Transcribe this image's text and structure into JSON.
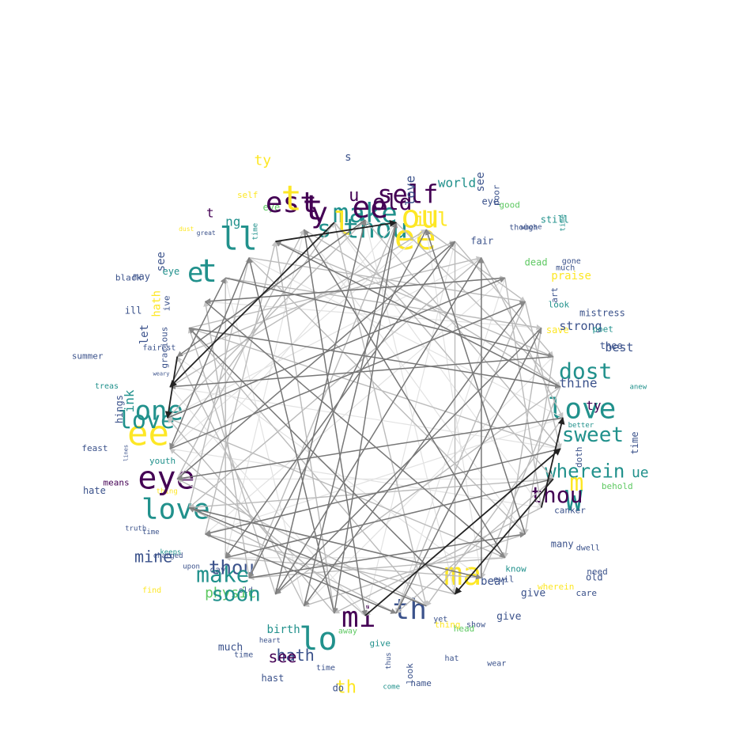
{
  "colors": {
    "edge_strong": "#222222",
    "edge_mid": "#777777",
    "edge_light": "#bbbbbb",
    "edge_faint": "#e2e2e2",
    "viridis": [
      "#440154",
      "#3b528b",
      "#21918c",
      "#5ec962",
      "#fde725"
    ]
  },
  "words": [
    {
      "text": "make",
      "color": 2,
      "size": 34
    },
    {
      "text": "ee",
      "color": 0,
      "size": 38
    },
    {
      "text": "thou",
      "color": 2,
      "size": 34
    },
    {
      "text": "old",
      "color": 0,
      "size": 28
    },
    {
      "text": "self",
      "color": 0,
      "size": 32
    },
    {
      "text": "love",
      "color": 1,
      "size": 16
    },
    {
      "text": "ou",
      "color": 4,
      "size": 40
    },
    {
      "text": "ee",
      "color": 4,
      "size": 44
    },
    {
      "text": "ill",
      "color": 4,
      "size": 24
    },
    {
      "text": "world",
      "color": 2,
      "size": 16
    },
    {
      "text": "see",
      "color": 1,
      "size": 14
    },
    {
      "text": "eye",
      "color": 1,
      "size": 12
    },
    {
      "text": "poor",
      "color": 1,
      "size": 11
    },
    {
      "text": "good",
      "color": 3,
      "size": 11
    },
    {
      "text": "fair",
      "color": 1,
      "size": 12
    },
    {
      "text": "though",
      "color": 1,
      "size": 10
    },
    {
      "text": "whose",
      "color": 1,
      "size": 9
    },
    {
      "text": "still",
      "color": 2,
      "size": 12
    },
    {
      "text": "time",
      "color": 2,
      "size": 9
    },
    {
      "text": "dead",
      "color": 3,
      "size": 12
    },
    {
      "text": "gone",
      "color": 1,
      "size": 10
    },
    {
      "text": "much",
      "color": 1,
      "size": 10
    },
    {
      "text": "praise",
      "color": 4,
      "size": 14
    },
    {
      "text": "art",
      "color": 1,
      "size": 11
    },
    {
      "text": "look",
      "color": 2,
      "size": 11
    },
    {
      "text": "save",
      "color": 4,
      "size": 12
    },
    {
      "text": "strong",
      "color": 1,
      "size": 15
    },
    {
      "text": "mistress",
      "color": 1,
      "size": 12
    },
    {
      "text": "poet",
      "color": 2,
      "size": 11
    },
    {
      "text": "best",
      "color": 1,
      "size": 15
    },
    {
      "text": "thee",
      "color": 1,
      "size": 12
    },
    {
      "text": "dost",
      "color": 2,
      "size": 28
    },
    {
      "text": "thine",
      "color": 1,
      "size": 16
    },
    {
      "text": "anew",
      "color": 2,
      "size": 9
    },
    {
      "text": "love",
      "color": 2,
      "size": 36
    },
    {
      "text": "ty",
      "color": 0,
      "size": 16
    },
    {
      "text": "better",
      "color": 2,
      "size": 9
    },
    {
      "text": "time",
      "color": 1,
      "size": 12
    },
    {
      "text": "sweet",
      "color": 2,
      "size": 26
    },
    {
      "text": "doth",
      "color": 1,
      "size": 11
    },
    {
      "text": "ue",
      "color": 2,
      "size": 18
    },
    {
      "text": "wherein",
      "color": 2,
      "size": 24
    },
    {
      "text": "behold",
      "color": 3,
      "size": 11
    },
    {
      "text": "m",
      "color": 4,
      "size": 30
    },
    {
      "text": "W",
      "color": 2,
      "size": 36
    },
    {
      "text": "thou",
      "color": 0,
      "size": 28
    },
    {
      "text": "canker",
      "color": 1,
      "size": 11
    },
    {
      "text": "dwell",
      "color": 1,
      "size": 10
    },
    {
      "text": "many",
      "color": 1,
      "size": 12
    },
    {
      "text": "need",
      "color": 1,
      "size": 11
    },
    {
      "text": "old",
      "color": 1,
      "size": 12
    },
    {
      "text": "care",
      "color": 1,
      "size": 11
    },
    {
      "text": "wherein",
      "color": 4,
      "size": 11
    },
    {
      "text": "give",
      "color": 1,
      "size": 13
    },
    {
      "text": "know",
      "color": 2,
      "size": 11
    },
    {
      "text": "evil",
      "color": 1,
      "size": 11
    },
    {
      "text": "bear",
      "color": 1,
      "size": 14
    },
    {
      "text": "give",
      "color": 1,
      "size": 13
    },
    {
      "text": "ma",
      "color": 4,
      "size": 40
    },
    {
      "text": "show",
      "color": 1,
      "size": 10
    },
    {
      "text": "wear",
      "color": 1,
      "size": 10
    },
    {
      "text": "head",
      "color": 3,
      "size": 11
    },
    {
      "text": "thing",
      "color": 4,
      "size": 11
    },
    {
      "text": "yet",
      "color": 1,
      "size": 10
    },
    {
      "text": "hat",
      "color": 1,
      "size": 10
    },
    {
      "text": "th",
      "color": 1,
      "size": 36
    },
    {
      "text": "name",
      "color": 1,
      "size": 11
    },
    {
      "text": "look",
      "color": 1,
      "size": 11
    },
    {
      "text": "thus",
      "color": 1,
      "size": 9
    },
    {
      "text": "come",
      "color": 2,
      "size": 9
    },
    {
      "text": "give",
      "color": 2,
      "size": 11
    },
    {
      "text": "mi",
      "color": 0,
      "size": 36
    },
    {
      "text": "th",
      "color": 4,
      "size": 22
    },
    {
      "text": "away",
      "color": 3,
      "size": 10
    },
    {
      "text": "do",
      "color": 1,
      "size": 12
    },
    {
      "text": "time",
      "color": 1,
      "size": 10
    },
    {
      "text": "lo",
      "color": 2,
      "size": 40
    },
    {
      "text": "hath",
      "color": 1,
      "size": 20
    },
    {
      "text": "hast",
      "color": 1,
      "size": 12
    },
    {
      "text": "see",
      "color": 0,
      "size": 20
    },
    {
      "text": "birth",
      "color": 2,
      "size": 14
    },
    {
      "text": "heart",
      "color": 1,
      "size": 9
    },
    {
      "text": "time",
      "color": 1,
      "size": 10
    },
    {
      "text": "much",
      "color": 1,
      "size": 13
    },
    {
      "text": "old",
      "color": 1,
      "size": 10
    },
    {
      "text": "physic",
      "color": 3,
      "size": 18
    },
    {
      "text": "soon",
      "color": 2,
      "size": 26
    },
    {
      "text": "thou",
      "color": 1,
      "size": 24
    },
    {
      "text": "make",
      "color": 2,
      "size": 28
    },
    {
      "text": "day",
      "color": 1,
      "size": 11
    },
    {
      "text": "upon",
      "color": 1,
      "size": 9
    },
    {
      "text": "find",
      "color": 4,
      "size": 10
    },
    {
      "text": "keeps",
      "color": 2,
      "size": 9
    },
    {
      "text": "charged",
      "color": 1,
      "size": 9
    },
    {
      "text": "mine",
      "color": 1,
      "size": 20
    },
    {
      "text": "time",
      "color": 1,
      "size": 9
    },
    {
      "text": "love",
      "color": 2,
      "size": 36
    },
    {
      "text": "truth",
      "color": 1,
      "size": 9
    },
    {
      "text": "thing",
      "color": 4,
      "size": 9
    },
    {
      "text": "eye",
      "color": 0,
      "size": 40
    },
    {
      "text": "means",
      "color": 0,
      "size": 11
    },
    {
      "text": "hate",
      "color": 1,
      "size": 12
    },
    {
      "text": "youth",
      "color": 2,
      "size": 11
    },
    {
      "text": "lines",
      "color": 1,
      "size": 7
    },
    {
      "text": "feast",
      "color": 1,
      "size": 11
    },
    {
      "text": "ee",
      "color": 4,
      "size": 44
    },
    {
      "text": "love",
      "color": 2,
      "size": 30
    },
    {
      "text": "hings",
      "color": 1,
      "size": 12
    },
    {
      "text": "one",
      "color": 2,
      "size": 34
    },
    {
      "text": "ink",
      "color": 2,
      "size": 16
    },
    {
      "text": "treas",
      "color": 2,
      "size": 10
    },
    {
      "text": "weary",
      "color": 1,
      "size": 7
    },
    {
      "text": "summer",
      "color": 1,
      "size": 11
    },
    {
      "text": "fairest",
      "color": 1,
      "size": 10
    },
    {
      "text": "gracious",
      "color": 1,
      "size": 11
    },
    {
      "text": "let",
      "color": 1,
      "size": 14
    },
    {
      "text": "ill",
      "color": 1,
      "size": 12
    },
    {
      "text": "hath",
      "color": 4,
      "size": 14
    },
    {
      "text": "ive",
      "color": 1,
      "size": 11
    },
    {
      "text": "black",
      "color": 1,
      "size": 11
    },
    {
      "text": "may",
      "color": 1,
      "size": 12
    },
    {
      "text": "eye",
      "color": 2,
      "size": 12
    },
    {
      "text": "see",
      "color": 1,
      "size": 14
    },
    {
      "text": "e",
      "color": 2,
      "size": 34
    },
    {
      "text": "t",
      "color": 2,
      "size": 40
    },
    {
      "text": "dust",
      "color": 4,
      "size": 8
    },
    {
      "text": "great",
      "color": 1,
      "size": 8
    },
    {
      "text": "t",
      "color": 0,
      "size": 16
    },
    {
      "text": "ll",
      "color": 2,
      "size": 40
    },
    {
      "text": "ng",
      "color": 2,
      "size": 16
    },
    {
      "text": "time",
      "color": 2,
      "size": 9
    },
    {
      "text": "self",
      "color": 4,
      "size": 11
    },
    {
      "text": "eye",
      "color": 3,
      "size": 12
    },
    {
      "text": "ty",
      "color": 4,
      "size": 18
    },
    {
      "text": "est",
      "color": 0,
      "size": 36
    },
    {
      "text": "t",
      "color": 4,
      "size": 44
    },
    {
      "text": "t",
      "color": 0,
      "size": 44
    },
    {
      "text": "y",
      "color": 0,
      "size": 36
    },
    {
      "text": "s",
      "color": 2,
      "size": 30
    },
    {
      "text": "l",
      "color": 4,
      "size": 40
    },
    {
      "text": "u",
      "color": 0,
      "size": 22
    },
    {
      "text": "s",
      "color": 1,
      "size": 14
    }
  ],
  "edges": [
    {
      "from": 13,
      "to": 10,
      "w": 3,
      "dir": 1
    },
    {
      "from": 12,
      "to": 17,
      "w": 3,
      "dir": 1
    },
    {
      "from": 20,
      "to": 11,
      "w": 3,
      "dir": 1
    },
    {
      "from": 37,
      "to": 1,
      "w": 3,
      "dir": 1
    },
    {
      "from": 39,
      "to": 31,
      "w": 3,
      "dir": 1
    },
    {
      "from": 32,
      "to": 30,
      "w": 3,
      "dir": 1
    },
    {
      "from": 38,
      "to": 20,
      "w": 2,
      "dir": 1
    },
    {
      "from": 5,
      "to": 34,
      "w": 2,
      "dir": 1
    },
    {
      "from": 6,
      "to": 22,
      "w": 2,
      "dir": 1
    },
    {
      "from": 33,
      "to": 9,
      "w": 2,
      "dir": 1
    },
    {
      "from": 8,
      "to": 31,
      "w": 2,
      "dir": 1
    },
    {
      "from": 7,
      "to": 23,
      "w": 2,
      "dir": 1
    },
    {
      "from": 4,
      "to": 23,
      "w": 2,
      "dir": 1
    },
    {
      "from": 24,
      "to": 14,
      "w": 2,
      "dir": 1
    },
    {
      "from": 26,
      "to": 19,
      "w": 2,
      "dir": 1
    },
    {
      "from": 25,
      "to": 12,
      "w": 2,
      "dir": 1
    },
    {
      "from": 30,
      "to": 5,
      "w": 2,
      "dir": 1
    },
    {
      "from": 29,
      "to": 6,
      "w": 2,
      "dir": 1
    },
    {
      "from": 35,
      "to": 8,
      "w": 2,
      "dir": 1
    },
    {
      "from": 16,
      "to": 4,
      "w": 2,
      "dir": 1
    },
    {
      "from": 18,
      "to": 27,
      "w": 2,
      "dir": 1
    },
    {
      "from": 21,
      "to": 36,
      "w": 2,
      "dir": 1
    },
    {
      "from": 28,
      "to": 3,
      "w": 2,
      "dir": 1
    },
    {
      "from": 15,
      "to": 38,
      "w": 2,
      "dir": 1
    },
    {
      "from": 11,
      "to": 26,
      "w": 2,
      "dir": 1
    },
    {
      "from": 14,
      "to": 2,
      "w": 2,
      "dir": 1
    },
    {
      "from": 22,
      "to": 1,
      "w": 2,
      "dir": 1
    },
    {
      "from": 23,
      "to": 0,
      "w": 2,
      "dir": 1
    },
    {
      "from": 27,
      "to": 16,
      "w": 2,
      "dir": 1
    },
    {
      "from": 34,
      "to": 15,
      "w": 2,
      "dir": 1
    },
    {
      "from": 36,
      "to": 29,
      "w": 2,
      "dir": 1
    },
    {
      "from": 17,
      "to": 33,
      "w": 2,
      "dir": 1
    },
    {
      "from": 19,
      "to": 7,
      "w": 2,
      "dir": 1
    },
    {
      "from": 31,
      "to": 35,
      "w": 2,
      "dir": 1
    },
    {
      "from": 3,
      "to": 25,
      "w": 2,
      "dir": 1
    },
    {
      "from": 2,
      "to": 24,
      "w": 2,
      "dir": 1
    },
    {
      "from": 9,
      "to": 37,
      "w": 2,
      "dir": 1
    },
    {
      "from": 10,
      "to": 28,
      "w": 2,
      "dir": 1
    },
    {
      "from": 0,
      "to": 32,
      "w": 2,
      "dir": 1
    },
    {
      "from": 1,
      "to": 21,
      "w": 2,
      "dir": 1
    },
    {
      "from": 1,
      "to": 9,
      "w": 1,
      "dir": 1
    },
    {
      "from": 2,
      "to": 6,
      "w": 1,
      "dir": 1
    },
    {
      "from": 3,
      "to": 8,
      "w": 1,
      "dir": 1
    },
    {
      "from": 4,
      "to": 10,
      "w": 1,
      "dir": 1
    },
    {
      "from": 5,
      "to": 13,
      "w": 1,
      "dir": 1
    },
    {
      "from": 6,
      "to": 11,
      "w": 1,
      "dir": 1
    },
    {
      "from": 7,
      "to": 15,
      "w": 1,
      "dir": 1
    },
    {
      "from": 8,
      "to": 14,
      "w": 1,
      "dir": 1
    },
    {
      "from": 9,
      "to": 16,
      "w": 1,
      "dir": 1
    },
    {
      "from": 10,
      "to": 18,
      "w": 1,
      "dir": 1
    },
    {
      "from": 11,
      "to": 20,
      "w": 1,
      "dir": 1
    },
    {
      "from": 12,
      "to": 19,
      "w": 1,
      "dir": 1
    },
    {
      "from": 13,
      "to": 21,
      "w": 1,
      "dir": 1
    },
    {
      "from": 14,
      "to": 22,
      "w": 1,
      "dir": 1
    },
    {
      "from": 15,
      "to": 24,
      "w": 1,
      "dir": 1
    },
    {
      "from": 16,
      "to": 25,
      "w": 1,
      "dir": 1
    },
    {
      "from": 17,
      "to": 26,
      "w": 1,
      "dir": 1
    },
    {
      "from": 18,
      "to": 28,
      "w": 1,
      "dir": 1
    },
    {
      "from": 19,
      "to": 27,
      "w": 1,
      "dir": 1
    },
    {
      "from": 20,
      "to": 29,
      "w": 1,
      "dir": 1
    },
    {
      "from": 21,
      "to": 30,
      "w": 1,
      "dir": 1
    },
    {
      "from": 22,
      "to": 32,
      "w": 1,
      "dir": 1
    },
    {
      "from": 23,
      "to": 33,
      "w": 1,
      "dir": 1
    },
    {
      "from": 24,
      "to": 34,
      "w": 1,
      "dir": 1
    },
    {
      "from": 25,
      "to": 35,
      "w": 1,
      "dir": 1
    },
    {
      "from": 26,
      "to": 37,
      "w": 1,
      "dir": 1
    },
    {
      "from": 27,
      "to": 36,
      "w": 1,
      "dir": 1
    },
    {
      "from": 28,
      "to": 38,
      "w": 1,
      "dir": 1
    },
    {
      "from": 29,
      "to": 39,
      "w": 1,
      "dir": 1
    },
    {
      "from": 30,
      "to": 0,
      "w": 1,
      "dir": 1
    },
    {
      "from": 31,
      "to": 2,
      "w": 1,
      "dir": 1
    },
    {
      "from": 32,
      "to": 3,
      "w": 1,
      "dir": 1
    },
    {
      "from": 33,
      "to": 4,
      "w": 1,
      "dir": 1
    },
    {
      "from": 34,
      "to": 5,
      "w": 1,
      "dir": 1
    },
    {
      "from": 35,
      "to": 7,
      "w": 1,
      "dir": 1
    },
    {
      "from": 36,
      "to": 6,
      "w": 1,
      "dir": 1
    },
    {
      "from": 37,
      "to": 8,
      "w": 1,
      "dir": 1
    },
    {
      "from": 38,
      "to": 9,
      "w": 1,
      "dir": 1
    },
    {
      "from": 39,
      "to": 12,
      "w": 1,
      "dir": 1
    },
    {
      "from": 0,
      "to": 11,
      "w": 1,
      "dir": 1
    },
    {
      "from": 3,
      "to": 17,
      "w": 1,
      "dir": 1
    },
    {
      "from": 6,
      "to": 19,
      "w": 1,
      "dir": 1
    },
    {
      "from": 9,
      "to": 23,
      "w": 1,
      "dir": 1
    },
    {
      "from": 12,
      "to": 27,
      "w": 1,
      "dir": 1
    },
    {
      "from": 15,
      "to": 30,
      "w": 1,
      "dir": 1
    },
    {
      "from": 18,
      "to": 33,
      "w": 1,
      "dir": 1
    },
    {
      "from": 21,
      "to": 37,
      "w": 1,
      "dir": 1
    },
    {
      "from": 24,
      "to": 1,
      "w": 1,
      "dir": 1
    },
    {
      "from": 27,
      "to": 4,
      "w": 1,
      "dir": 1
    },
    {
      "from": 33,
      "to": 11,
      "w": 1,
      "dir": 1
    },
    {
      "from": 36,
      "to": 14,
      "w": 1,
      "dir": 1
    },
    {
      "from": 39,
      "to": 18,
      "w": 1,
      "dir": 1
    },
    {
      "from": 2,
      "to": 29,
      "w": 0,
      "dir": 1
    },
    {
      "from": 5,
      "to": 26,
      "w": 0,
      "dir": 1
    },
    {
      "from": 8,
      "to": 35,
      "w": 0,
      "dir": 1
    },
    {
      "from": 11,
      "to": 31,
      "w": 0,
      "dir": 1
    },
    {
      "from": 14,
      "to": 38,
      "w": 0,
      "dir": 1
    },
    {
      "from": 17,
      "to": 0,
      "w": 0,
      "dir": 1
    },
    {
      "from": 20,
      "to": 3,
      "w": 0,
      "dir": 1
    },
    {
      "from": 23,
      "to": 7,
      "w": 0,
      "dir": 1
    },
    {
      "from": 26,
      "to": 10,
      "w": 0,
      "dir": 1
    },
    {
      "from": 29,
      "to": 13,
      "w": 0,
      "dir": 1
    },
    {
      "from": 32,
      "to": 16,
      "w": 0,
      "dir": 1
    },
    {
      "from": 35,
      "to": 22,
      "w": 0,
      "dir": 1
    },
    {
      "from": 38,
      "to": 25,
      "w": 0,
      "dir": 1
    },
    {
      "from": 1,
      "to": 28,
      "w": 0,
      "dir": 1
    },
    {
      "from": 4,
      "to": 30,
      "w": 0,
      "dir": 1
    },
    {
      "from": 7,
      "to": 34,
      "w": 0,
      "dir": 1
    },
    {
      "from": 10,
      "to": 36,
      "w": 0,
      "dir": 1
    },
    {
      "from": 13,
      "to": 39,
      "w": 0,
      "dir": 1
    },
    {
      "from": 16,
      "to": 2,
      "w": 0,
      "dir": 1
    },
    {
      "from": 19,
      "to": 5,
      "w": 0,
      "dir": 1
    },
    {
      "from": 22,
      "to": 8,
      "w": 0,
      "dir": 1
    },
    {
      "from": 25,
      "to": 15,
      "w": 0,
      "dir": 1
    },
    {
      "from": 28,
      "to": 12,
      "w": 0,
      "dir": 1
    },
    {
      "from": 31,
      "to": 20,
      "w": 0,
      "dir": 1
    },
    {
      "from": 34,
      "to": 24,
      "w": 0,
      "dir": 1
    },
    {
      "from": 37,
      "to": 21,
      "w": 0,
      "dir": 1
    }
  ]
}
